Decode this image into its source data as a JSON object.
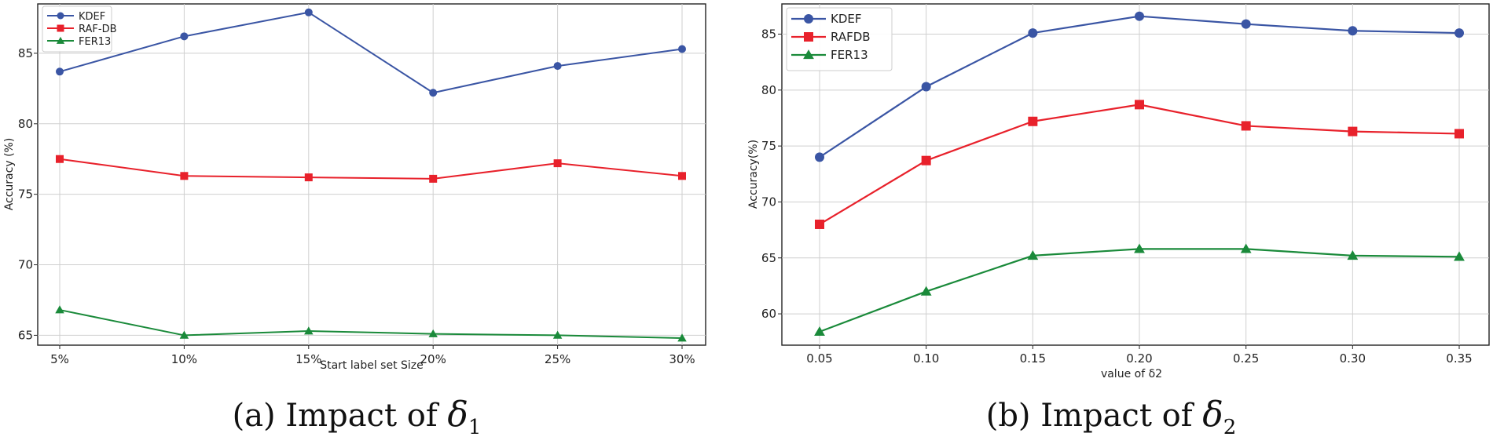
{
  "chart_data": [
    {
      "type": "line",
      "xlabel": "Start label set Size",
      "ylabel": "Accuracy (%)",
      "categories": [
        "5%",
        "10%",
        "15%",
        "20%",
        "25%",
        "30%"
      ],
      "ylim": [
        64.3,
        88.5
      ],
      "yticks": [
        65,
        70,
        75,
        80,
        85
      ],
      "grid": true,
      "legend_position": "top-left",
      "series": [
        {
          "name": "KDEF",
          "marker": "circle",
          "color": "#3a55a4",
          "values": [
            83.7,
            86.2,
            87.9,
            82.2,
            84.1,
            85.3
          ]
        },
        {
          "name": "RAF-DB",
          "marker": "square",
          "color": "#e8212b",
          "values": [
            77.5,
            76.3,
            76.2,
            76.1,
            77.2,
            76.3
          ]
        },
        {
          "name": "FER13",
          "marker": "triangle",
          "color": "#1a8a3a",
          "values": [
            66.8,
            65.0,
            65.3,
            65.1,
            65.0,
            64.8
          ]
        }
      ],
      "caption": {
        "prefix": "(a) Impact of ",
        "symbol": "δ",
        "subscript": "1"
      }
    },
    {
      "type": "line",
      "xlabel": "value of δ2",
      "ylabel": "Accuracy(%)",
      "categories": [
        "0.05",
        "0.10",
        "0.15",
        "0.20",
        "0.25",
        "0.30",
        "0.35"
      ],
      "ylim": [
        57.2,
        87.7
      ],
      "yticks": [
        60,
        65,
        70,
        75,
        80,
        85
      ],
      "grid": true,
      "legend_position": "top-left",
      "series": [
        {
          "name": "KDEF",
          "marker": "circle",
          "color": "#3a55a4",
          "values": [
            74.0,
            80.3,
            85.1,
            86.6,
            85.9,
            85.3,
            85.1
          ]
        },
        {
          "name": "RAFDB",
          "marker": "square",
          "color": "#e8212b",
          "values": [
            68.0,
            73.7,
            77.2,
            78.7,
            76.8,
            76.3,
            76.1
          ]
        },
        {
          "name": "FER13",
          "marker": "triangle",
          "color": "#1a8a3a",
          "values": [
            58.4,
            62.0,
            65.2,
            65.8,
            65.8,
            65.2,
            65.1
          ]
        }
      ],
      "caption": {
        "prefix": "(b) Impact of ",
        "symbol": "δ",
        "subscript": "2"
      }
    }
  ]
}
